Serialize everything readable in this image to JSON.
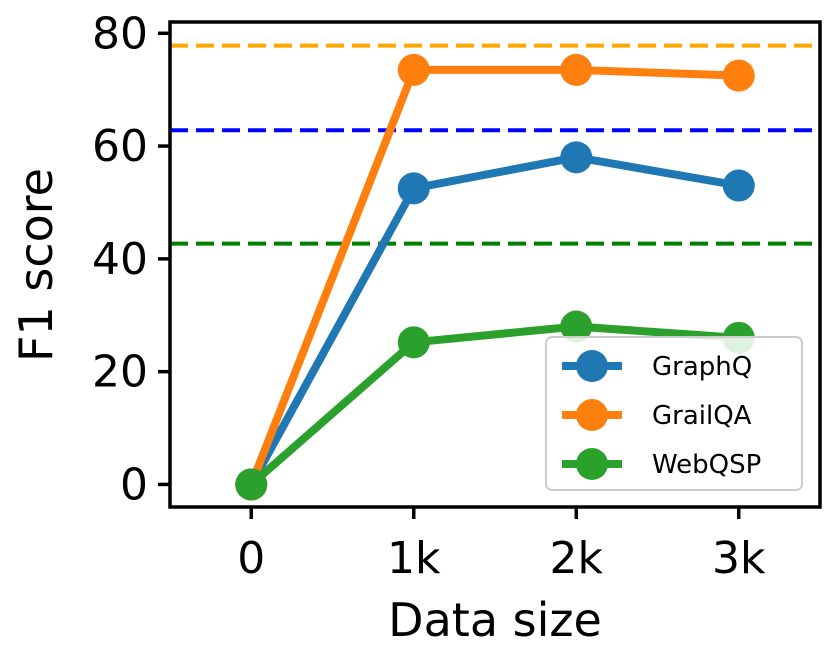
{
  "chart_data": {
    "type": "line",
    "x_ticks": [
      "0",
      "1k",
      "2k",
      "3k"
    ],
    "x": [
      0,
      1000,
      2000,
      3000
    ],
    "xlim": [
      -500,
      3500
    ],
    "xlabel": "Data size",
    "ylabel": "F1 score",
    "ylim": [
      -4,
      82
    ],
    "y_ticks": [
      0,
      20,
      40,
      60,
      80
    ],
    "grid": false,
    "legend_position": "lower-right",
    "series": [
      {
        "name": "GraphQ",
        "color": "#1f77b4",
        "values": [
          0,
          52.5,
          58,
          53
        ]
      },
      {
        "name": "GrailQA",
        "color": "#ff7f0e",
        "values": [
          0,
          73.5,
          73.5,
          72.5
        ]
      },
      {
        "name": "WebQSP",
        "color": "#2ca02c",
        "values": [
          0,
          25.2,
          28,
          26
        ]
      }
    ],
    "reference_lines": [
      {
        "y": 77.8,
        "color": "#ffa500",
        "style": "dashed"
      },
      {
        "y": 62.8,
        "color": "#0000ff",
        "style": "dashed"
      },
      {
        "y": 42.7,
        "color": "#008000",
        "style": "dashed"
      }
    ]
  }
}
